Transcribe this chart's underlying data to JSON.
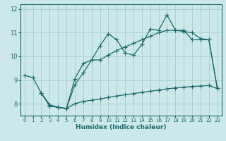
{
  "xlabel": "Humidex (Indice chaleur)",
  "ylabel": "",
  "bg_color": "#cce8e8",
  "grid_color": "#aad0d0",
  "line_color": "#1a6b6b",
  "xlim": [
    -0.5,
    23.5
  ],
  "ylim": [
    7.5,
    12.2
  ],
  "xticks": [
    0,
    1,
    2,
    3,
    4,
    5,
    6,
    7,
    8,
    9,
    10,
    11,
    12,
    13,
    14,
    15,
    16,
    17,
    18,
    19,
    20,
    21,
    22,
    23
  ],
  "yticks": [
    8,
    9,
    10,
    11,
    12
  ],
  "line1_x": [
    0,
    1,
    2,
    3,
    4,
    5,
    6,
    7,
    8,
    9,
    10,
    11,
    12,
    13,
    14,
    15,
    16,
    17,
    18,
    19,
    20,
    21,
    22,
    23
  ],
  "line1_y": [
    9.2,
    9.1,
    8.45,
    7.9,
    7.85,
    7.8,
    8.8,
    9.3,
    9.85,
    9.85,
    10.05,
    10.25,
    10.4,
    10.55,
    10.7,
    10.85,
    11.0,
    11.1,
    11.1,
    11.05,
    11.0,
    10.75,
    10.7,
    8.65
  ],
  "line2_x": [
    2,
    3,
    4,
    5,
    6,
    7,
    8,
    9,
    10,
    11,
    12,
    13,
    14,
    15,
    16,
    17,
    18,
    19,
    20,
    21,
    22,
    23
  ],
  "line2_y": [
    8.45,
    7.95,
    7.85,
    7.8,
    8.0,
    8.1,
    8.15,
    8.2,
    8.27,
    8.33,
    8.38,
    8.43,
    8.48,
    8.53,
    8.58,
    8.63,
    8.67,
    8.7,
    8.73,
    8.75,
    8.77,
    8.65
  ],
  "line3_x": [
    2,
    3,
    4,
    5,
    6,
    7,
    8,
    9,
    10,
    11,
    12,
    13,
    14,
    15,
    16,
    17,
    18,
    19,
    20,
    21,
    22,
    23
  ],
  "line3_y": [
    8.45,
    7.95,
    7.85,
    7.8,
    9.05,
    9.7,
    9.85,
    10.45,
    10.95,
    10.7,
    10.15,
    10.05,
    10.5,
    11.15,
    11.1,
    11.75,
    11.1,
    11.1,
    10.7,
    10.7,
    10.7,
    8.65
  ]
}
